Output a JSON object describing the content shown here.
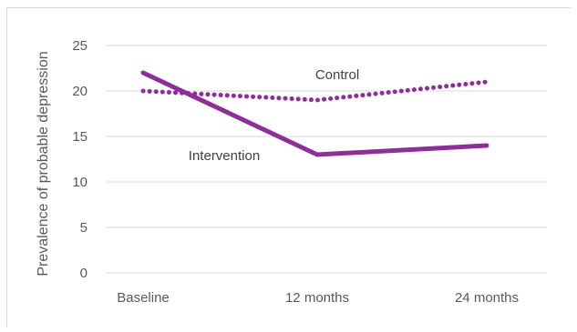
{
  "chart_data": {
    "type": "line",
    "categories": [
      "Baseline",
      "12 months",
      "24 months"
    ],
    "ylabel": "Prevalence of probable depression",
    "xlabel": "",
    "ylim": [
      0,
      25
    ],
    "yticks": [
      0,
      5,
      10,
      15,
      20,
      25
    ],
    "grid": true,
    "legend": "none",
    "series": [
      {
        "name": "Control",
        "values": [
          20,
          19,
          21
        ],
        "style": "dotted",
        "color": "#8e2f99"
      },
      {
        "name": "Intervention",
        "values": [
          22,
          13,
          14
        ],
        "style": "solid",
        "color": "#8e2f99"
      }
    ]
  }
}
